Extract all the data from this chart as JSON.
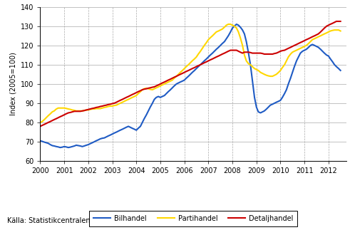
{
  "title": "",
  "ylabel": "Index (2005=100)",
  "source": "Källa: Statistikcentralen",
  "xlim": [
    2000,
    2012.75
  ],
  "ylim": [
    60,
    140
  ],
  "yticks": [
    60,
    70,
    80,
    90,
    100,
    110,
    120,
    130,
    140
  ],
  "xticks": [
    2000,
    2001,
    2002,
    2003,
    2004,
    2005,
    2006,
    2007,
    2008,
    2009,
    2010,
    2011,
    2012
  ],
  "line_colors": {
    "Bilhandel": "#1F5BC4",
    "Partihandel": "#FFD700",
    "Detaljhandel": "#CC0000"
  },
  "line_widths": {
    "Bilhandel": 1.5,
    "Partihandel": 1.5,
    "Detaljhandel": 1.5
  },
  "bilhandel_x": [
    2000.0,
    2000.08,
    2000.17,
    2000.25,
    2000.33,
    2000.42,
    2000.5,
    2000.58,
    2000.67,
    2000.75,
    2000.83,
    2000.92,
    2001.0,
    2001.08,
    2001.17,
    2001.25,
    2001.33,
    2001.42,
    2001.5,
    2001.58,
    2001.67,
    2001.75,
    2001.83,
    2001.92,
    2002.0,
    2002.08,
    2002.17,
    2002.25,
    2002.33,
    2002.42,
    2002.5,
    2002.58,
    2002.67,
    2002.75,
    2002.83,
    2002.92,
    2003.0,
    2003.08,
    2003.17,
    2003.25,
    2003.33,
    2003.42,
    2003.5,
    2003.58,
    2003.67,
    2003.75,
    2003.83,
    2003.92,
    2004.0,
    2004.08,
    2004.17,
    2004.25,
    2004.33,
    2004.42,
    2004.5,
    2004.58,
    2004.67,
    2004.75,
    2004.83,
    2004.92,
    2005.0,
    2005.08,
    2005.17,
    2005.25,
    2005.33,
    2005.42,
    2005.5,
    2005.58,
    2005.67,
    2005.75,
    2005.83,
    2005.92,
    2006.0,
    2006.08,
    2006.17,
    2006.25,
    2006.33,
    2006.42,
    2006.5,
    2006.58,
    2006.67,
    2006.75,
    2006.83,
    2006.92,
    2007.0,
    2007.08,
    2007.17,
    2007.25,
    2007.33,
    2007.42,
    2007.5,
    2007.58,
    2007.67,
    2007.75,
    2007.83,
    2007.92,
    2008.0,
    2008.08,
    2008.17,
    2008.25,
    2008.33,
    2008.42,
    2008.5,
    2008.58,
    2008.67,
    2008.75,
    2008.83,
    2008.92,
    2009.0,
    2009.08,
    2009.17,
    2009.25,
    2009.33,
    2009.42,
    2009.5,
    2009.58,
    2009.67,
    2009.75,
    2009.83,
    2009.92,
    2010.0,
    2010.08,
    2010.17,
    2010.25,
    2010.33,
    2010.42,
    2010.5,
    2010.58,
    2010.67,
    2010.75,
    2010.83,
    2010.92,
    2011.0,
    2011.08,
    2011.17,
    2011.25,
    2011.33,
    2011.42,
    2011.5,
    2011.58,
    2011.67,
    2011.75,
    2011.83,
    2011.92,
    2012.0,
    2012.08,
    2012.17,
    2012.25,
    2012.33,
    2012.42,
    2012.5
  ],
  "bilhandel_y": [
    70.5,
    70.2,
    69.8,
    69.5,
    69.2,
    68.5,
    68.0,
    67.8,
    67.5,
    67.3,
    67.0,
    67.2,
    67.5,
    67.3,
    67.0,
    67.2,
    67.5,
    67.8,
    68.2,
    68.0,
    67.8,
    67.5,
    67.8,
    68.2,
    68.5,
    69.0,
    69.5,
    70.0,
    70.5,
    71.0,
    71.5,
    71.8,
    72.0,
    72.5,
    73.0,
    73.5,
    74.0,
    74.5,
    75.0,
    75.5,
    76.0,
    76.5,
    77.0,
    77.5,
    78.0,
    77.5,
    77.0,
    76.5,
    76.0,
    77.0,
    78.0,
    80.0,
    82.0,
    84.0,
    86.0,
    88.0,
    90.0,
    92.0,
    93.0,
    93.5,
    93.0,
    93.5,
    94.0,
    95.0,
    96.0,
    97.0,
    98.0,
    99.0,
    100.0,
    100.5,
    101.0,
    101.5,
    102.0,
    103.0,
    104.0,
    105.0,
    106.0,
    107.0,
    108.0,
    109.0,
    110.0,
    111.0,
    112.0,
    113.0,
    114.0,
    115.0,
    116.0,
    117.0,
    118.0,
    119.0,
    120.0,
    121.0,
    122.0,
    123.5,
    125.0,
    127.0,
    129.0,
    130.0,
    131.0,
    130.5,
    129.5,
    128.0,
    126.0,
    122.0,
    116.0,
    110.0,
    102.0,
    93.0,
    88.0,
    85.5,
    85.0,
    85.5,
    86.0,
    87.0,
    88.0,
    89.0,
    89.5,
    90.0,
    90.5,
    91.0,
    91.5,
    93.0,
    95.0,
    97.0,
    100.0,
    103.0,
    106.0,
    109.0,
    112.0,
    114.0,
    116.0,
    117.0,
    117.5,
    118.0,
    119.0,
    120.0,
    120.5,
    120.0,
    119.5,
    119.0,
    118.0,
    117.0,
    116.0,
    115.0,
    114.5,
    113.0,
    111.5,
    110.0,
    109.0,
    108.0,
    107.0
  ],
  "partihandel_x": [
    2000.0,
    2000.08,
    2000.17,
    2000.25,
    2000.33,
    2000.42,
    2000.5,
    2000.58,
    2000.67,
    2000.75,
    2000.83,
    2000.92,
    2001.0,
    2001.08,
    2001.17,
    2001.25,
    2001.33,
    2001.42,
    2001.5,
    2001.58,
    2001.67,
    2001.75,
    2001.83,
    2001.92,
    2002.0,
    2002.08,
    2002.17,
    2002.25,
    2002.33,
    2002.42,
    2002.5,
    2002.58,
    2002.67,
    2002.75,
    2002.83,
    2002.92,
    2003.0,
    2003.08,
    2003.17,
    2003.25,
    2003.33,
    2003.42,
    2003.5,
    2003.58,
    2003.67,
    2003.75,
    2003.83,
    2003.92,
    2004.0,
    2004.08,
    2004.17,
    2004.25,
    2004.33,
    2004.42,
    2004.5,
    2004.58,
    2004.67,
    2004.75,
    2004.83,
    2004.92,
    2005.0,
    2005.08,
    2005.17,
    2005.25,
    2005.33,
    2005.42,
    2005.5,
    2005.58,
    2005.67,
    2005.75,
    2005.83,
    2005.92,
    2006.0,
    2006.08,
    2006.17,
    2006.25,
    2006.33,
    2006.42,
    2006.5,
    2006.58,
    2006.67,
    2006.75,
    2006.83,
    2006.92,
    2007.0,
    2007.08,
    2007.17,
    2007.25,
    2007.33,
    2007.42,
    2007.5,
    2007.58,
    2007.67,
    2007.75,
    2007.83,
    2007.92,
    2008.0,
    2008.08,
    2008.17,
    2008.25,
    2008.33,
    2008.42,
    2008.5,
    2008.58,
    2008.67,
    2008.75,
    2008.83,
    2008.92,
    2009.0,
    2009.08,
    2009.17,
    2009.25,
    2009.33,
    2009.42,
    2009.5,
    2009.58,
    2009.67,
    2009.75,
    2009.83,
    2009.92,
    2010.0,
    2010.08,
    2010.17,
    2010.25,
    2010.33,
    2010.42,
    2010.5,
    2010.58,
    2010.67,
    2010.75,
    2010.83,
    2010.92,
    2011.0,
    2011.08,
    2011.17,
    2011.25,
    2011.33,
    2011.42,
    2011.5,
    2011.58,
    2011.67,
    2011.75,
    2011.83,
    2011.92,
    2012.0,
    2012.08,
    2012.17,
    2012.25,
    2012.33,
    2012.42,
    2012.5
  ],
  "partihandel_y": [
    80.0,
    80.5,
    81.5,
    82.5,
    83.5,
    84.5,
    85.5,
    86.0,
    87.0,
    87.5,
    87.5,
    87.5,
    87.5,
    87.3,
    87.0,
    86.8,
    86.5,
    86.3,
    86.0,
    86.0,
    86.0,
    86.0,
    86.2,
    86.5,
    86.5,
    86.8,
    87.0,
    87.0,
    87.2,
    87.2,
    87.2,
    87.5,
    87.8,
    88.0,
    88.3,
    88.5,
    88.5,
    88.8,
    89.0,
    89.5,
    90.0,
    90.5,
    91.0,
    91.5,
    92.0,
    92.5,
    93.0,
    93.5,
    94.0,
    95.0,
    96.0,
    97.0,
    97.5,
    97.8,
    97.5,
    97.2,
    97.0,
    97.5,
    98.0,
    98.5,
    99.0,
    99.5,
    100.0,
    100.5,
    101.0,
    101.5,
    102.0,
    103.0,
    104.0,
    105.0,
    106.0,
    107.0,
    108.0,
    109.0,
    110.0,
    111.0,
    112.0,
    113.0,
    114.0,
    115.5,
    117.0,
    118.5,
    120.0,
    121.5,
    123.0,
    124.0,
    125.0,
    126.0,
    127.0,
    127.5,
    128.0,
    128.5,
    129.5,
    130.5,
    131.0,
    131.0,
    130.5,
    130.0,
    129.0,
    127.0,
    124.0,
    120.0,
    115.0,
    112.0,
    110.5,
    110.0,
    109.0,
    108.0,
    107.5,
    107.0,
    106.0,
    105.5,
    105.0,
    104.5,
    104.2,
    104.0,
    104.0,
    104.5,
    105.0,
    106.0,
    107.0,
    108.5,
    110.0,
    112.0,
    114.0,
    115.5,
    116.5,
    117.0,
    117.5,
    118.0,
    118.5,
    119.0,
    119.5,
    120.0,
    121.0,
    122.0,
    123.0,
    123.5,
    124.0,
    124.5,
    125.0,
    125.5,
    126.0,
    126.5,
    127.0,
    127.5,
    127.8,
    128.0,
    128.0,
    128.0,
    127.5
  ],
  "detaljhandel_x": [
    2000.0,
    2000.08,
    2000.17,
    2000.25,
    2000.33,
    2000.42,
    2000.5,
    2000.58,
    2000.67,
    2000.75,
    2000.83,
    2000.92,
    2001.0,
    2001.08,
    2001.17,
    2001.25,
    2001.33,
    2001.42,
    2001.5,
    2001.58,
    2001.67,
    2001.75,
    2001.83,
    2001.92,
    2002.0,
    2002.08,
    2002.17,
    2002.25,
    2002.33,
    2002.42,
    2002.5,
    2002.58,
    2002.67,
    2002.75,
    2002.83,
    2002.92,
    2003.0,
    2003.08,
    2003.17,
    2003.25,
    2003.33,
    2003.42,
    2003.5,
    2003.58,
    2003.67,
    2003.75,
    2003.83,
    2003.92,
    2004.0,
    2004.08,
    2004.17,
    2004.25,
    2004.33,
    2004.42,
    2004.5,
    2004.58,
    2004.67,
    2004.75,
    2004.83,
    2004.92,
    2005.0,
    2005.08,
    2005.17,
    2005.25,
    2005.33,
    2005.42,
    2005.5,
    2005.58,
    2005.67,
    2005.75,
    2005.83,
    2005.92,
    2006.0,
    2006.08,
    2006.17,
    2006.25,
    2006.33,
    2006.42,
    2006.5,
    2006.58,
    2006.67,
    2006.75,
    2006.83,
    2006.92,
    2007.0,
    2007.08,
    2007.17,
    2007.25,
    2007.33,
    2007.42,
    2007.5,
    2007.58,
    2007.67,
    2007.75,
    2007.83,
    2007.92,
    2008.0,
    2008.08,
    2008.17,
    2008.25,
    2008.33,
    2008.42,
    2008.5,
    2008.58,
    2008.67,
    2008.75,
    2008.83,
    2008.92,
    2009.0,
    2009.08,
    2009.17,
    2009.25,
    2009.33,
    2009.42,
    2009.5,
    2009.58,
    2009.67,
    2009.75,
    2009.83,
    2009.92,
    2010.0,
    2010.08,
    2010.17,
    2010.25,
    2010.33,
    2010.42,
    2010.5,
    2010.58,
    2010.67,
    2010.75,
    2010.83,
    2010.92,
    2011.0,
    2011.08,
    2011.17,
    2011.25,
    2011.33,
    2011.42,
    2011.5,
    2011.58,
    2011.67,
    2011.75,
    2011.83,
    2011.92,
    2012.0,
    2012.08,
    2012.17,
    2012.25,
    2012.33,
    2012.42,
    2012.5
  ],
  "detaljhandel_y": [
    78.0,
    78.5,
    79.0,
    79.5,
    80.0,
    80.5,
    81.0,
    81.5,
    82.0,
    82.5,
    83.0,
    83.5,
    84.0,
    84.5,
    85.0,
    85.2,
    85.5,
    85.8,
    85.8,
    85.8,
    85.8,
    86.0,
    86.2,
    86.5,
    86.8,
    87.0,
    87.3,
    87.5,
    87.8,
    88.0,
    88.3,
    88.5,
    88.8,
    89.0,
    89.3,
    89.5,
    89.8,
    90.0,
    90.5,
    91.0,
    91.5,
    92.0,
    92.5,
    93.0,
    93.5,
    94.0,
    94.5,
    95.0,
    95.5,
    96.0,
    96.5,
    97.0,
    97.3,
    97.5,
    97.8,
    98.0,
    98.3,
    98.5,
    99.0,
    99.5,
    100.0,
    100.5,
    101.0,
    101.5,
    102.0,
    102.5,
    103.0,
    103.5,
    104.0,
    104.5,
    105.0,
    105.5,
    106.0,
    106.5,
    107.0,
    107.5,
    108.0,
    108.5,
    109.0,
    109.5,
    110.0,
    110.5,
    111.0,
    111.5,
    112.0,
    112.5,
    113.0,
    113.5,
    114.0,
    114.5,
    115.0,
    115.5,
    116.0,
    116.5,
    117.0,
    117.5,
    117.5,
    117.5,
    117.5,
    117.0,
    116.5,
    116.0,
    116.5,
    116.5,
    116.5,
    116.3,
    116.0,
    116.0,
    116.0,
    116.0,
    116.0,
    115.8,
    115.5,
    115.5,
    115.5,
    115.5,
    115.5,
    115.8,
    116.0,
    116.5,
    117.0,
    117.3,
    117.5,
    118.0,
    118.5,
    119.0,
    119.5,
    120.0,
    120.5,
    121.0,
    121.5,
    122.0,
    122.5,
    123.0,
    123.5,
    124.0,
    124.5,
    125.0,
    125.5,
    126.0,
    127.0,
    128.0,
    129.0,
    130.0,
    130.5,
    131.0,
    131.5,
    132.0,
    132.5,
    132.5,
    132.5
  ],
  "legend_labels": [
    "Bilhandel",
    "Partihandel",
    "Detaljhandel"
  ],
  "grid_color": "#AAAAAA",
  "bg_color": "#FFFFFF",
  "font_size": 7
}
